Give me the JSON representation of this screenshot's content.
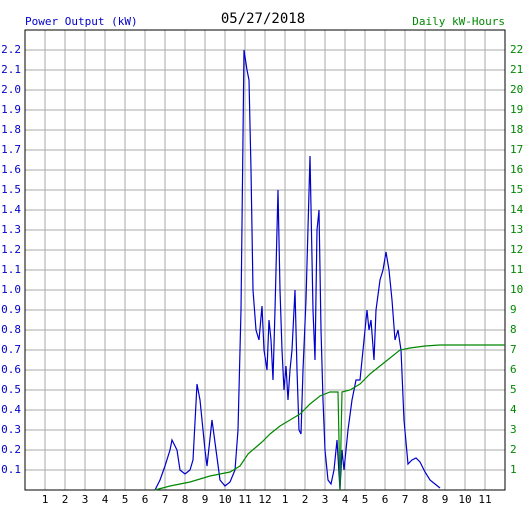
{
  "chart_data": {
    "type": "line",
    "title": "05/27/2018",
    "y_label": "Power Output (kW)",
    "y2_label": "Daily kW-Hours",
    "grid": true,
    "xlim": [
      0,
      24
    ],
    "xticks": [
      1,
      2,
      3,
      4,
      5,
      6,
      7,
      8,
      9,
      10,
      11,
      12,
      {
        "value": 13,
        "label": "1"
      },
      {
        "value": 14,
        "label": "2"
      },
      {
        "value": 15,
        "label": "3"
      },
      {
        "value": 16,
        "label": "4"
      },
      {
        "value": 17,
        "label": "5"
      },
      {
        "value": 18,
        "label": "6"
      },
      {
        "value": 19,
        "label": "7"
      },
      {
        "value": 20,
        "label": "8"
      },
      {
        "value": 21,
        "label": "9"
      },
      {
        "value": 22,
        "label": "10"
      },
      {
        "value": 23,
        "label": "11"
      }
    ],
    "ylim": [
      0,
      2.3
    ],
    "yticks": [
      0.1,
      0.2,
      0.3,
      0.4,
      0.5,
      0.6,
      0.7,
      0.8,
      0.9,
      {
        "value": 1,
        "label": "1.0"
      },
      1.1,
      1.2,
      1.3,
      1.4,
      1.5,
      1.6,
      1.7,
      1.8,
      1.9,
      {
        "value": 2,
        "label": "2.0"
      },
      2.1,
      2.2
    ],
    "y2lim": [
      0,
      23
    ],
    "y2ticks": [
      1,
      2,
      3,
      4,
      5,
      6,
      7,
      8,
      9,
      10,
      11,
      12,
      13,
      14,
      15,
      16,
      17,
      18,
      19,
      20,
      21,
      22
    ],
    "series": [
      {
        "name": "Power Output (kW)",
        "color": "#0000cc",
        "x": [
          6.5,
          6.75,
          7,
          7.25,
          7.35,
          7.6,
          7.75,
          8,
          8.25,
          8.4,
          8.6,
          8.75,
          9,
          9.1,
          9.35,
          9.55,
          9.75,
          10,
          10.25,
          10.5,
          10.65,
          10.8,
          10.95,
          11.1,
          11.2,
          11.3,
          11.4,
          11.55,
          11.7,
          11.85,
          11.95,
          12.1,
          12.2,
          12.3,
          12.4,
          12.5,
          12.65,
          12.75,
          12.85,
          12.95,
          13.05,
          13.15,
          13.25,
          13.35,
          13.5,
          13.6,
          13.7,
          13.8,
          13.9,
          14.05,
          14.25,
          14.4,
          14.5,
          14.6,
          14.7,
          14.8,
          14.9,
          15,
          15.15,
          15.3,
          15.45,
          15.6,
          15.75,
          15.85,
          15.95,
          16.05,
          16.15,
          16.35,
          16.55,
          16.75,
          16.95,
          17.1,
          17.2,
          17.3,
          17.45,
          17.55,
          17.75,
          17.9,
          18.05,
          18.2,
          18.35,
          18.5,
          18.65,
          18.8,
          18.95,
          19.15,
          19.35,
          19.55,
          19.75,
          20,
          20.25,
          20.5,
          20.75
        ],
        "values": [
          0,
          0.05,
          0.12,
          0.2,
          0.25,
          0.2,
          0.1,
          0.08,
          0.1,
          0.15,
          0.53,
          0.45,
          0.2,
          0.12,
          0.35,
          0.2,
          0.05,
          0.02,
          0.04,
          0.1,
          0.3,
          0.9,
          2.2,
          2.1,
          2.05,
          1.6,
          1.0,
          0.8,
          0.75,
          0.92,
          0.7,
          0.6,
          0.85,
          0.75,
          0.55,
          0.9,
          1.5,
          1.0,
          0.7,
          0.5,
          0.62,
          0.45,
          0.6,
          0.7,
          1.0,
          0.6,
          0.3,
          0.28,
          0.6,
          0.95,
          1.67,
          0.9,
          0.65,
          1.3,
          1.4,
          0.8,
          0.45,
          0.2,
          0.05,
          0.03,
          0.1,
          0.25,
          0,
          0.2,
          0.1,
          0.2,
          0.3,
          0.45,
          0.55,
          0.55,
          0.75,
          0.9,
          0.8,
          0.85,
          0.65,
          0.9,
          1.05,
          1.1,
          1.19,
          1.1,
          0.95,
          0.75,
          0.8,
          0.7,
          0.35,
          0.13,
          0.15,
          0.16,
          0.14,
          0.09,
          0.05,
          0.03,
          0.01
        ]
      },
      {
        "name": "Daily kW-Hours",
        "color": "#008800",
        "axis": "y2",
        "x": [
          6.5,
          7.25,
          8.25,
          9.25,
          10.25,
          10.75,
          11.15,
          11.5,
          11.85,
          12.25,
          12.75,
          13.25,
          13.75,
          14.25,
          14.75,
          15.25,
          15.65,
          15.75,
          15.85,
          16.25,
          16.75,
          17.25,
          17.75,
          18.25,
          18.75,
          19.25,
          20,
          20.75,
          24
        ],
        "values": [
          0,
          0.2,
          0.4,
          0.7,
          0.9,
          1.2,
          1.8,
          2.1,
          2.4,
          2.8,
          3.2,
          3.5,
          3.8,
          4.3,
          4.7,
          4.9,
          4.9,
          0,
          4.9,
          5.0,
          5.3,
          5.8,
          6.2,
          6.6,
          7.0,
          7.1,
          7.2,
          7.25,
          7.25
        ]
      }
    ]
  }
}
